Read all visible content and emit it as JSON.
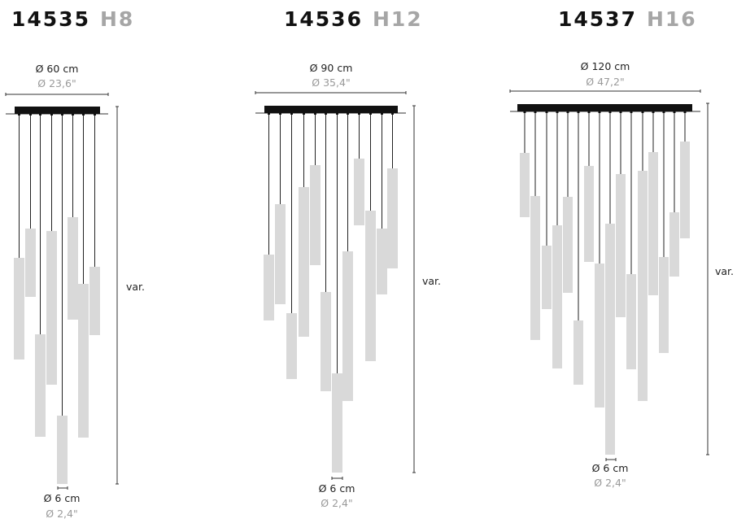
{
  "models": [
    {
      "code": "14535",
      "variant": "H8",
      "width_cm": "Ø 60 cm",
      "width_in": "Ø 23,6\"",
      "height_label": "var.",
      "tube_cm": "Ø 6 cm",
      "tube_in": "Ø 2,4\"",
      "lights": 8
    },
    {
      "code": "14536",
      "variant": "H12",
      "width_cm": "Ø 90 cm",
      "width_in": "Ø 35,4\"",
      "height_label": "var.",
      "tube_cm": "Ø 6 cm",
      "tube_in": "Ø 2,4\"",
      "lights": 12
    },
    {
      "code": "14537",
      "variant": "H16",
      "width_cm": "Ø 120 cm",
      "width_in": "Ø 47,2\"",
      "height_label": "var.",
      "tube_cm": "Ø 6 cm",
      "tube_in": "Ø 2,4\"",
      "lights": 16
    }
  ],
  "colors": {
    "canopy": "#111111",
    "tube": "#d9d9d9",
    "cord": "#222222",
    "variant_text": "#a6a6a6"
  }
}
